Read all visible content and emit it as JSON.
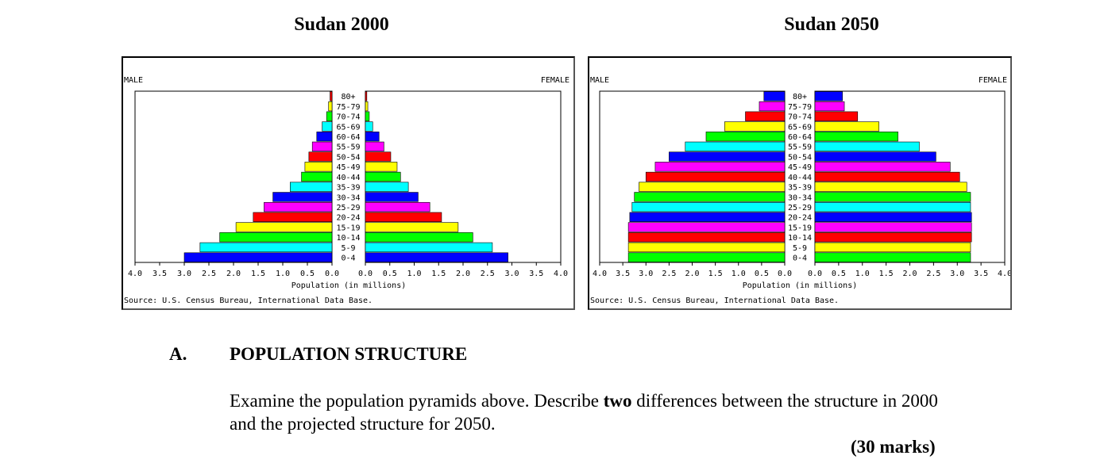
{
  "titles": [
    "Sudan 2000",
    "Sudan 2050"
  ],
  "section": {
    "letter": "A.",
    "title": "POPULATION STRUCTURE"
  },
  "question": {
    "before": "Examine the population pyramids above. Describe ",
    "bold": "two",
    "after": " differences between the structure in 2000 and  the projected structure for 2050."
  },
  "marks": "(30 marks)",
  "chart_data": [
    {
      "type": "bar",
      "orientation": "horizontal-population-pyramid",
      "title": "Sudan 2000",
      "left_label": "MALE",
      "right_label": "FEMALE",
      "xlabel": "Population (in millions)",
      "source": "Source: U.S. Census Bureau, International Data Base.",
      "xlim": [
        0,
        4
      ],
      "ticks": [
        "4.0",
        "3.5",
        "3.0",
        "2.5",
        "2.0",
        "1.5",
        "1.0",
        "0.5",
        "0.0"
      ],
      "ticks_right": [
        "0.0",
        "0.5",
        "1.0",
        "1.5",
        "2.0",
        "2.5",
        "3.0",
        "3.5",
        "4.0"
      ],
      "categories": [
        "0-4",
        "5-9",
        "10-14",
        "15-19",
        "20-24",
        "25-29",
        "30-34",
        "35-39",
        "40-44",
        "45-49",
        "50-54",
        "55-59",
        "60-64",
        "65-69",
        "70-74",
        "75-79",
        "80+"
      ],
      "series": [
        {
          "name": "MALE",
          "values": [
            3.0,
            2.68,
            2.28,
            1.95,
            1.6,
            1.38,
            1.2,
            0.85,
            0.62,
            0.55,
            0.47,
            0.4,
            0.31,
            0.2,
            0.11,
            0.07,
            0.04
          ]
        },
        {
          "name": "FEMALE",
          "values": [
            2.92,
            2.6,
            2.2,
            1.9,
            1.56,
            1.32,
            1.08,
            0.88,
            0.72,
            0.65,
            0.52,
            0.38,
            0.28,
            0.15,
            0.08,
            0.05,
            0.03
          ]
        }
      ],
      "bar_colors": [
        "#0000ff",
        "#00ffff",
        "#00ff00",
        "#ffff00",
        "#ff0000",
        "#ff00ff",
        "#0000ff",
        "#00ffff",
        "#00ff00",
        "#ffff00",
        "#ff0000",
        "#ff00ff",
        "#0000ff",
        "#00ffff",
        "#00ff00",
        "#ffff00",
        "#ff0000"
      ]
    },
    {
      "type": "bar",
      "orientation": "horizontal-population-pyramid",
      "title": "Sudan 2050",
      "left_label": "MALE",
      "right_label": "FEMALE",
      "xlabel": "Population (in millions)",
      "source": "Source: U.S. Census Bureau, International Data Base.",
      "xlim": [
        0,
        4
      ],
      "ticks": [
        "4.0",
        "3.5",
        "3.0",
        "2.5",
        "2.0",
        "1.5",
        "1.0",
        "0.5",
        "0.0"
      ],
      "ticks_right": [
        "0.0",
        "0.5",
        "1.0",
        "1.5",
        "2.0",
        "2.5",
        "3.0",
        "3.5",
        "4.0"
      ],
      "categories": [
        "0-4",
        "5-9",
        "10-14",
        "15-19",
        "20-24",
        "25-29",
        "30-34",
        "35-39",
        "40-44",
        "45-49",
        "50-54",
        "55-59",
        "60-64",
        "65-69",
        "70-74",
        "75-79",
        "80+"
      ],
      "series": [
        {
          "name": "MALE",
          "values": [
            3.38,
            3.38,
            3.38,
            3.38,
            3.35,
            3.3,
            3.25,
            3.15,
            3.0,
            2.8,
            2.5,
            2.15,
            1.7,
            1.3,
            0.85,
            0.55,
            0.45
          ]
        },
        {
          "name": "FEMALE",
          "values": [
            3.28,
            3.28,
            3.3,
            3.3,
            3.3,
            3.28,
            3.28,
            3.2,
            3.05,
            2.85,
            2.55,
            2.2,
            1.75,
            1.35,
            0.9,
            0.62,
            0.58
          ]
        }
      ],
      "bar_colors": [
        "#00ff00",
        "#ffff00",
        "#ff0000",
        "#ff00ff",
        "#0000ff",
        "#00ffff",
        "#00ff00",
        "#ffff00",
        "#ff0000",
        "#ff00ff",
        "#0000ff",
        "#00ffff",
        "#00ff00",
        "#ffff00",
        "#ff0000",
        "#ff00ff",
        "#0000ff"
      ]
    }
  ]
}
